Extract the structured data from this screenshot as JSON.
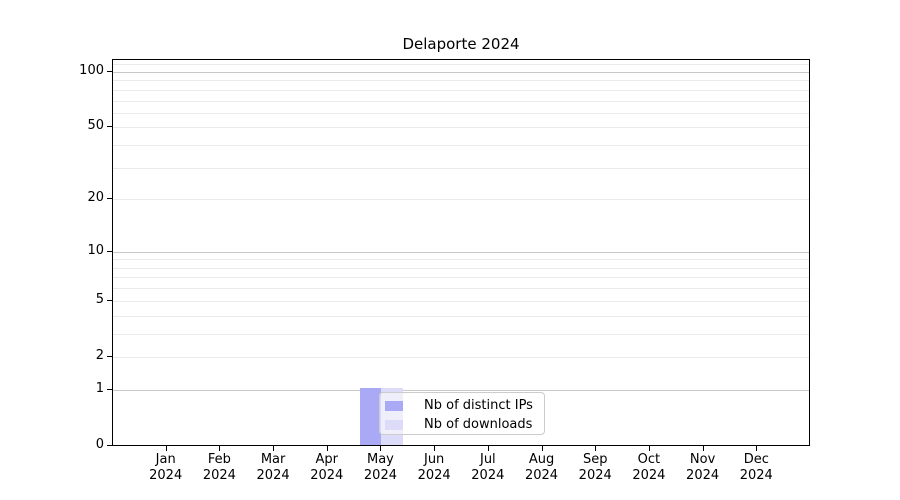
{
  "title": "Delaporte 2024",
  "chart_data": {
    "type": "bar",
    "title": "Delaporte 2024",
    "x_ticks": [
      {
        "month": "Jan",
        "year": "2024"
      },
      {
        "month": "Feb",
        "year": "2024"
      },
      {
        "month": "Mar",
        "year": "2024"
      },
      {
        "month": "Apr",
        "year": "2024"
      },
      {
        "month": "May",
        "year": "2024"
      },
      {
        "month": "Jun",
        "year": "2024"
      },
      {
        "month": "Jul",
        "year": "2024"
      },
      {
        "month": "Aug",
        "year": "2024"
      },
      {
        "month": "Sep",
        "year": "2024"
      },
      {
        "month": "Oct",
        "year": "2024"
      },
      {
        "month": "Nov",
        "year": "2024"
      },
      {
        "month": "Dec",
        "year": "2024"
      }
    ],
    "categories": [
      "Jan 2024",
      "Feb 2024",
      "Mar 2024",
      "Apr 2024",
      "May 2024",
      "Jun 2024",
      "Jul 2024",
      "Aug 2024",
      "Sep 2024",
      "Oct 2024",
      "Nov 2024",
      "Dec 2024"
    ],
    "series": [
      {
        "name": "Nb of distinct IPs",
        "color": "#a9a9f6",
        "values": [
          0,
          0,
          0,
          0,
          1,
          0,
          0,
          0,
          0,
          0,
          0,
          0
        ]
      },
      {
        "name": "Nb of downloads",
        "color": "#dcdcf8",
        "values": [
          0,
          0,
          0,
          0,
          1,
          0,
          0,
          0,
          0,
          0,
          0,
          0
        ]
      }
    ],
    "y_axis": {
      "scale": "log1p",
      "labeled_ticks": [
        0,
        1,
        2,
        5,
        10,
        20,
        50,
        100
      ],
      "major_gridlines": [
        1,
        10,
        100
      ],
      "minor_gridlines": [
        2,
        3,
        4,
        5,
        6,
        7,
        8,
        9,
        20,
        30,
        40,
        50,
        60,
        70,
        80,
        90,
        110
      ],
      "ylim": [
        0,
        116
      ]
    },
    "legend": {
      "position": "inside lower-center",
      "entries": [
        "Nb of distinct IPs",
        "Nb of downloads"
      ]
    },
    "colors": {
      "minor_grid": "#eaeaea",
      "major_grid": "#c8c8c8",
      "spine": "#000000",
      "background": "#ffffff"
    }
  }
}
